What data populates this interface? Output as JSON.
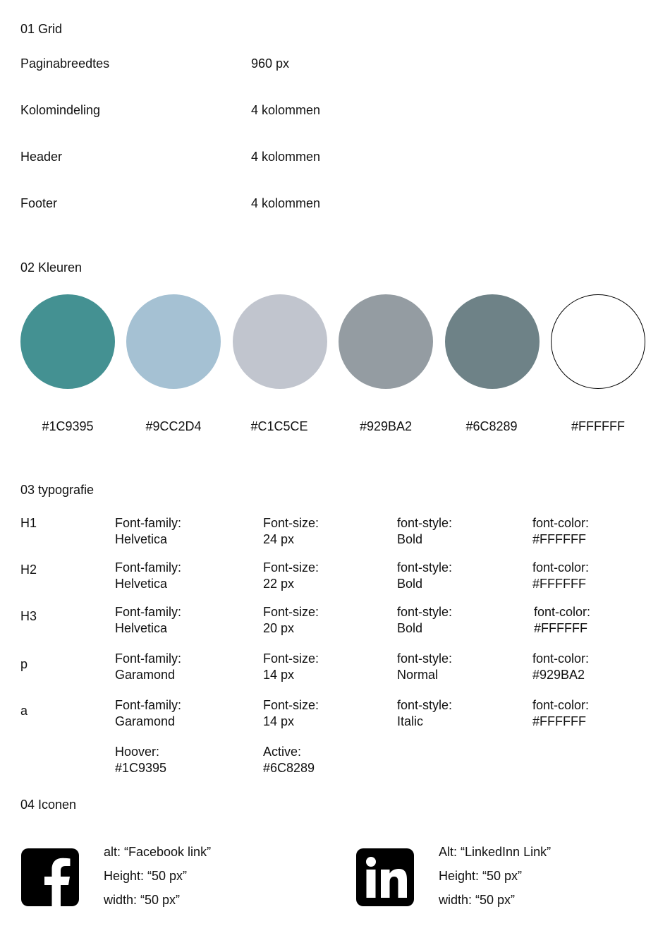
{
  "grid": {
    "title": "01 Grid",
    "rows": [
      {
        "label": "Paginabreedtes",
        "value": "960 px"
      },
      {
        "label": "Kolomindeling",
        "value": "4 kolommen"
      },
      {
        "label": "Header",
        "value": "4 kolommen"
      },
      {
        "label": "Footer",
        "value": "4 kolommen"
      }
    ]
  },
  "colors": {
    "title": "02 Kleuren",
    "swatches": [
      {
        "label": "#1C9395",
        "fill": "#449192"
      },
      {
        "label": "#9CC2D4",
        "fill": "#A5C1D3"
      },
      {
        "label": "#C1C5CE",
        "fill": "#C1C5CE"
      },
      {
        "label": "#929BA2",
        "fill": "#949CA2"
      },
      {
        "label": "#6C8289",
        "fill": "#6E8287"
      },
      {
        "label": "#FFFFFF",
        "fill": "#FFFFFF"
      }
    ]
  },
  "typography": {
    "title": "03 typografie",
    "rows": [
      {
        "tag": "H1",
        "family_label": "Font-family:",
        "family": "Helvetica",
        "size_label": "Font-size:",
        "size": "24 px",
        "style_label": "font-style:",
        "style": "Bold",
        "color_label": "font-color:",
        "color": "#FFFFFF"
      },
      {
        "tag": "H2",
        "family_label": "Font-family:",
        "family": "Helvetica",
        "size_label": "Font-size:",
        "size": "22 px",
        "style_label": "font-style:",
        "style": "Bold",
        "color_label": "font-color:",
        "color": "#FFFFFF"
      },
      {
        "tag": "H3",
        "family_label": "Font-family:",
        "family": "Helvetica",
        "size_label": "Font-size:",
        "size": "20 px",
        "style_label": "font-style:",
        "style": "Bold",
        "color_label": "font-color:",
        "color": "#FFFFFF"
      },
      {
        "tag": "p",
        "family_label": "Font-family:",
        "family": "Garamond",
        "size_label": "Font-size:",
        "size": "14 px",
        "style_label": "font-style:",
        "style": "Normal",
        "color_label": "font-color:",
        "color": "#929BA2"
      },
      {
        "tag": "a",
        "family_label": "Font-family:",
        "family": "Garamond",
        "size_label": "Font-size:",
        "size": "14 px",
        "style_label": "font-style:",
        "style": "Italic",
        "color_label": "font-color:",
        "color": "#FFFFFF"
      }
    ],
    "hover_label": "Hoover:",
    "hover_value": "#1C9395",
    "active_label": "Active:",
    "active_value": "#6C8289"
  },
  "icons": {
    "title": "04 Iconen",
    "items": [
      {
        "icon": "facebook-icon",
        "alt": "alt: “Facebook link”",
        "height": "Height: “50 px”",
        "width": "width: “50 px”"
      },
      {
        "icon": "linkedin-icon",
        "alt": "Alt: “LinkedInn Link”",
        "height": "Height: “50 px”",
        "width": "width: “50 px”"
      }
    ]
  }
}
